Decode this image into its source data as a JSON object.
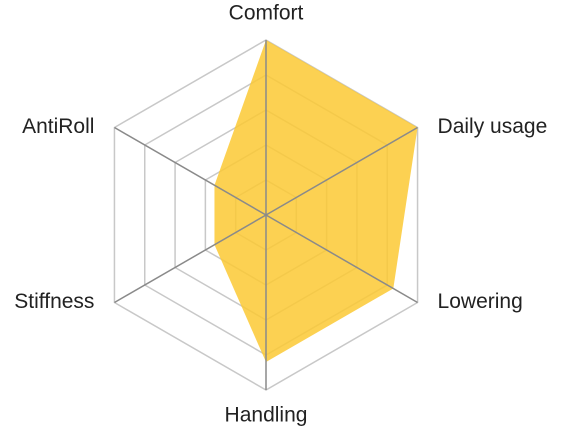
{
  "chart_data": {
    "type": "radar",
    "categories": [
      "Comfort",
      "Daily usage",
      "Lowering",
      "Handling",
      "Stiffness",
      "AntiRoll"
    ],
    "series": [
      {
        "color": "#fcc934",
        "values": [
          5,
          5,
          4.2,
          4.2,
          1.7,
          1.7
        ]
      }
    ],
    "rlim": [
      0,
      5
    ],
    "rticks": [
      1,
      2,
      3,
      4,
      5
    ],
    "grid": true
  }
}
